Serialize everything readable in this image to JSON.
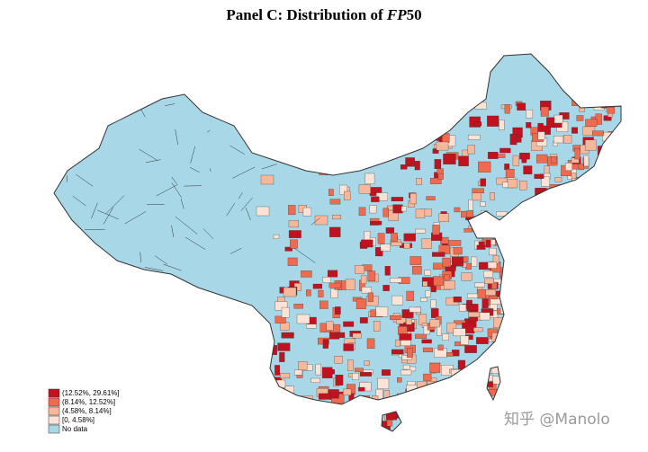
{
  "header": {
    "title": {
      "prefix": "Panel C: Distribution of ",
      "italic": "FP",
      "suffix": "50"
    }
  },
  "legend": {
    "items": [
      {
        "label": "(12.52%, 29.61%]",
        "color": "#c0121f"
      },
      {
        "label": "(8.14%, 12.52%]",
        "color": "#ef6a4f"
      },
      {
        "label": "(4.58%, 8.14%]",
        "color": "#f7b79b"
      },
      {
        "label": "[0, 4.58%]",
        "color": "#fde3d6"
      },
      {
        "label": "No data",
        "color": "#a8d8e8"
      }
    ]
  },
  "watermark": "知乎 @Manolo"
}
